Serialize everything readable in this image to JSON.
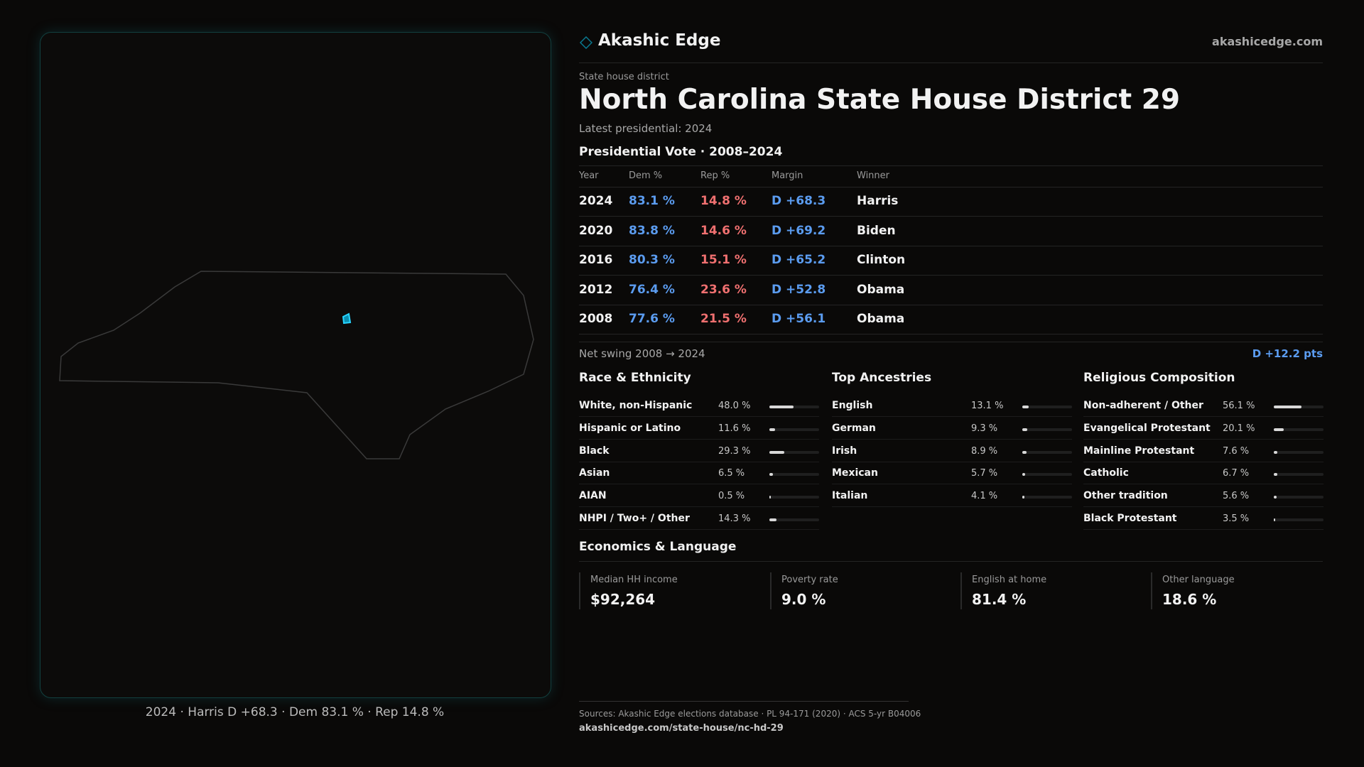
{
  "header": {
    "brand": "Akashic Edge",
    "site": "akashicedge.com"
  },
  "district": {
    "kicker": "State house district",
    "title": "North Carolina State House District 29",
    "latest": "Latest presidential: 2024"
  },
  "map": {
    "caption": "2024 · Harris D +68.3 · Dem 83.1 % · Rep 14.8 %"
  },
  "vote_table": {
    "title": "Presidential Vote · 2008–2024",
    "columns": [
      "Year",
      "Dem %",
      "Rep %",
      "Margin",
      "Winner"
    ],
    "rows": [
      [
        "2024",
        "83.1 %",
        "14.8 %",
        "D +68.3",
        "Harris"
      ],
      [
        "2020",
        "83.8 %",
        "14.6 %",
        "D +69.2",
        "Biden"
      ],
      [
        "2016",
        "80.3 %",
        "15.1 %",
        "D +65.2",
        "Clinton"
      ],
      [
        "2012",
        "76.4 %",
        "23.6 %",
        "D +52.8",
        "Obama"
      ],
      [
        "2008",
        "77.6 %",
        "21.5 %",
        "D +56.1",
        "Obama"
      ]
    ],
    "swing_label": "Net swing 2008 → 2024",
    "swing_value": "D +12.2 pts"
  },
  "panels": [
    {
      "title": "Race & Ethnicity",
      "rows": [
        {
          "name": "White, non-Hispanic",
          "value": 48.0,
          "label": "48.0 %"
        },
        {
          "name": "Hispanic or Latino",
          "value": 11.6,
          "label": "11.6 %"
        },
        {
          "name": "Black",
          "value": 29.3,
          "label": "29.3 %"
        },
        {
          "name": "Asian",
          "value": 6.5,
          "label": "6.5 %"
        },
        {
          "name": "AIAN",
          "value": 0.5,
          "label": "0.5 %"
        },
        {
          "name": "NHPI / Two+ / Other",
          "value": 14.3,
          "label": "14.3 %"
        }
      ]
    },
    {
      "title": "Top Ancestries",
      "rows": [
        {
          "name": "English",
          "value": 13.1,
          "label": "13.1 %"
        },
        {
          "name": "German",
          "value": 9.3,
          "label": "9.3 %"
        },
        {
          "name": "Irish",
          "value": 8.9,
          "label": "8.9 %"
        },
        {
          "name": "Mexican",
          "value": 5.7,
          "label": "5.7 %"
        },
        {
          "name": "Italian",
          "value": 4.1,
          "label": "4.1 %"
        }
      ]
    },
    {
      "title": "Religious Composition",
      "rows": [
        {
          "name": "Non-adherent / Other",
          "value": 56.1,
          "label": "56.1 %"
        },
        {
          "name": "Evangelical Protestant",
          "value": 20.1,
          "label": "20.1 %"
        },
        {
          "name": "Mainline Protestant",
          "value": 7.6,
          "label": "7.6 %"
        },
        {
          "name": "Catholic",
          "value": 6.7,
          "label": "6.7 %"
        },
        {
          "name": "Other tradition",
          "value": 5.6,
          "label": "5.6 %"
        },
        {
          "name": "Black Protestant",
          "value": 3.5,
          "label": "3.5 %"
        }
      ]
    }
  ],
  "economics": {
    "title": "Economics & Language",
    "cards": [
      {
        "label": "Median HH income",
        "value": "$92,264"
      },
      {
        "label": "Poverty rate",
        "value": "9.0 %"
      },
      {
        "label": "English at home",
        "value": "81.4 %"
      },
      {
        "label": "Other language",
        "value": "18.6 %"
      }
    ]
  },
  "footer": {
    "sources": "Sources: Akashic Edge elections database · PL 94-171 (2020) · ACS 5-yr B04006",
    "url": "akashicedge.com/state-house/nc-hd-29"
  }
}
